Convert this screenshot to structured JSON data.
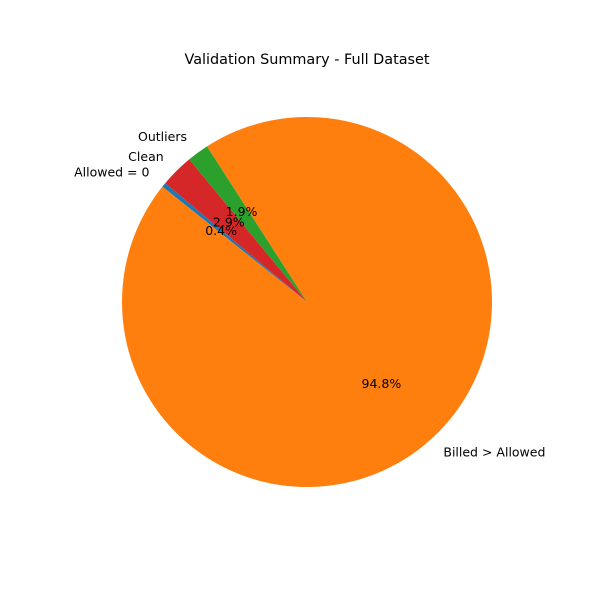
{
  "chart_data": {
    "type": "pie",
    "title": "Validation Summary - Full Dataset",
    "slices": [
      {
        "label": "Allowed = 0",
        "value": 0.4,
        "pct_label": "0.4%",
        "color": "#1f77b4"
      },
      {
        "label": "Billed > Allowed",
        "value": 94.8,
        "pct_label": "94.8%",
        "color": "#ff7f0e"
      },
      {
        "label": "Outliers",
        "value": 1.9,
        "pct_label": "1.9%",
        "color": "#2ca02c"
      },
      {
        "label": "Clean",
        "value": 2.9,
        "pct_label": "2.9%",
        "color": "#d62728"
      }
    ],
    "start_angle_deg": 140,
    "direction": "counterclockwise"
  }
}
